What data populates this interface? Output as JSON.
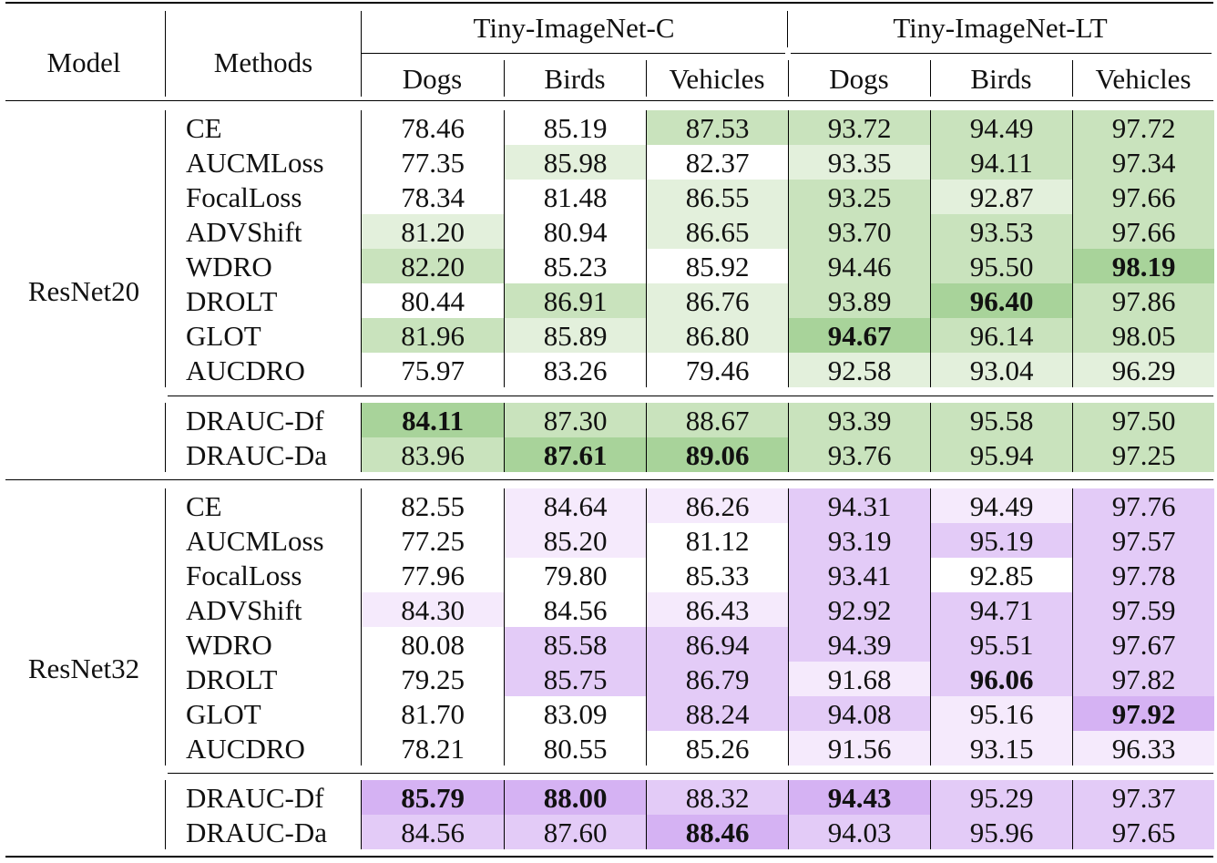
{
  "header": {
    "model": "Model",
    "methods": "Methods",
    "groups": [
      "Tiny-ImageNet-C",
      "Tiny-ImageNet-LT"
    ],
    "subgroups": [
      "Dogs",
      "Birds",
      "Vehicles",
      "Dogs",
      "Birds",
      "Vehicles"
    ]
  },
  "colors": {
    "resnet20": [
      "#ffffff",
      "#e3f0dc",
      "#c9e3bd",
      "#a8d39a"
    ],
    "resnet32": [
      "#ffffff",
      "#f5eafc",
      "#e3cbf7",
      "#d5b2f3"
    ]
  },
  "blocks": [
    {
      "model": "ResNet20",
      "palette": "resnet20",
      "rows": [
        {
          "method": "CE",
          "values": [
            "78.46",
            "85.19",
            "87.53",
            "93.72",
            "94.49",
            "97.72"
          ],
          "shade": [
            0,
            0,
            2,
            2,
            2,
            2
          ],
          "bold": [
            false,
            false,
            false,
            false,
            false,
            false
          ]
        },
        {
          "method": "AUCMLoss",
          "values": [
            "77.35",
            "85.98",
            "82.37",
            "93.35",
            "94.11",
            "97.34"
          ],
          "shade": [
            0,
            1,
            0,
            1,
            2,
            2
          ],
          "bold": [
            false,
            false,
            false,
            false,
            false,
            false
          ]
        },
        {
          "method": "FocalLoss",
          "values": [
            "78.34",
            "81.48",
            "86.55",
            "93.25",
            "92.87",
            "97.66"
          ],
          "shade": [
            0,
            0,
            1,
            2,
            1,
            2
          ],
          "bold": [
            false,
            false,
            false,
            false,
            false,
            false
          ]
        },
        {
          "method": "ADVShift",
          "values": [
            "81.20",
            "80.94",
            "86.65",
            "93.70",
            "93.53",
            "97.66"
          ],
          "shade": [
            1,
            0,
            1,
            2,
            2,
            2
          ],
          "bold": [
            false,
            false,
            false,
            false,
            false,
            false
          ]
        },
        {
          "method": "WDRO",
          "values": [
            "82.20",
            "85.23",
            "85.92",
            "94.46",
            "95.50",
            "98.19"
          ],
          "shade": [
            2,
            0,
            0,
            2,
            2,
            3
          ],
          "bold": [
            false,
            false,
            false,
            false,
            false,
            true
          ]
        },
        {
          "method": "DROLT",
          "values": [
            "80.44",
            "86.91",
            "86.76",
            "93.89",
            "96.40",
            "97.86"
          ],
          "shade": [
            0,
            2,
            1,
            2,
            3,
            2
          ],
          "bold": [
            false,
            false,
            false,
            false,
            true,
            false
          ]
        },
        {
          "method": "GLOT",
          "values": [
            "81.96",
            "85.89",
            "86.80",
            "94.67",
            "96.14",
            "98.05"
          ],
          "shade": [
            2,
            1,
            1,
            3,
            2,
            2
          ],
          "bold": [
            false,
            false,
            false,
            true,
            false,
            false
          ]
        },
        {
          "method": "AUCDRO",
          "values": [
            "75.97",
            "83.26",
            "79.46",
            "92.58",
            "93.04",
            "96.29"
          ],
          "shade": [
            0,
            0,
            0,
            1,
            1,
            1
          ],
          "bold": [
            false,
            false,
            false,
            false,
            false,
            false
          ]
        }
      ],
      "ours": [
        {
          "method": "DRAUC-Df",
          "values": [
            "84.11",
            "87.30",
            "88.67",
            "93.39",
            "95.58",
            "97.50"
          ],
          "shade": [
            3,
            2,
            2,
            2,
            2,
            2
          ],
          "bold": [
            true,
            false,
            false,
            false,
            false,
            false
          ]
        },
        {
          "method": "DRAUC-Da",
          "values": [
            "83.96",
            "87.61",
            "89.06",
            "93.76",
            "95.94",
            "97.25"
          ],
          "shade": [
            2,
            3,
            3,
            2,
            2,
            2
          ],
          "bold": [
            false,
            true,
            true,
            false,
            false,
            false
          ]
        }
      ]
    },
    {
      "model": "ResNet32",
      "palette": "resnet32",
      "rows": [
        {
          "method": "CE",
          "values": [
            "82.55",
            "84.64",
            "86.26",
            "94.31",
            "94.49",
            "97.76"
          ],
          "shade": [
            0,
            1,
            1,
            2,
            1,
            2
          ],
          "bold": [
            false,
            false,
            false,
            false,
            false,
            false
          ]
        },
        {
          "method": "AUCMLoss",
          "values": [
            "77.25",
            "85.20",
            "81.12",
            "93.19",
            "95.19",
            "97.57"
          ],
          "shade": [
            0,
            1,
            0,
            2,
            2,
            2
          ],
          "bold": [
            false,
            false,
            false,
            false,
            false,
            false
          ]
        },
        {
          "method": "FocalLoss",
          "values": [
            "77.96",
            "79.80",
            "85.33",
            "93.41",
            "92.85",
            "97.78"
          ],
          "shade": [
            0,
            0,
            0,
            2,
            0,
            2
          ],
          "bold": [
            false,
            false,
            false,
            false,
            false,
            false
          ]
        },
        {
          "method": "ADVShift",
          "values": [
            "84.30",
            "84.56",
            "86.43",
            "92.92",
            "94.71",
            "97.59"
          ],
          "shade": [
            1,
            0,
            1,
            2,
            2,
            2
          ],
          "bold": [
            false,
            false,
            false,
            false,
            false,
            false
          ]
        },
        {
          "method": "WDRO",
          "values": [
            "80.08",
            "85.58",
            "86.94",
            "94.39",
            "95.51",
            "97.67"
          ],
          "shade": [
            0,
            2,
            2,
            2,
            2,
            2
          ],
          "bold": [
            false,
            false,
            false,
            false,
            false,
            false
          ]
        },
        {
          "method": "DROLT",
          "values": [
            "79.25",
            "85.75",
            "86.79",
            "91.68",
            "96.06",
            "97.82"
          ],
          "shade": [
            0,
            2,
            2,
            1,
            2,
            2
          ],
          "bold": [
            false,
            false,
            false,
            false,
            true,
            false
          ]
        },
        {
          "method": "GLOT",
          "values": [
            "81.70",
            "83.09",
            "88.24",
            "94.08",
            "95.16",
            "97.92"
          ],
          "shade": [
            0,
            0,
            2,
            2,
            1,
            3
          ],
          "bold": [
            false,
            false,
            false,
            false,
            false,
            true
          ]
        },
        {
          "method": "AUCDRO",
          "values": [
            "78.21",
            "80.55",
            "85.26",
            "91.56",
            "93.15",
            "96.33"
          ],
          "shade": [
            0,
            0,
            0,
            1,
            1,
            1
          ],
          "bold": [
            false,
            false,
            false,
            false,
            false,
            false
          ]
        }
      ],
      "ours": [
        {
          "method": "DRAUC-Df",
          "values": [
            "85.79",
            "88.00",
            "88.32",
            "94.43",
            "95.29",
            "97.37"
          ],
          "shade": [
            3,
            3,
            2,
            3,
            2,
            2
          ],
          "bold": [
            true,
            true,
            false,
            true,
            false,
            false
          ]
        },
        {
          "method": "DRAUC-Da",
          "values": [
            "84.56",
            "87.60",
            "88.46",
            "94.03",
            "95.96",
            "97.65"
          ],
          "shade": [
            2,
            2,
            3,
            2,
            2,
            2
          ],
          "bold": [
            false,
            false,
            true,
            false,
            false,
            false
          ]
        }
      ]
    }
  ]
}
